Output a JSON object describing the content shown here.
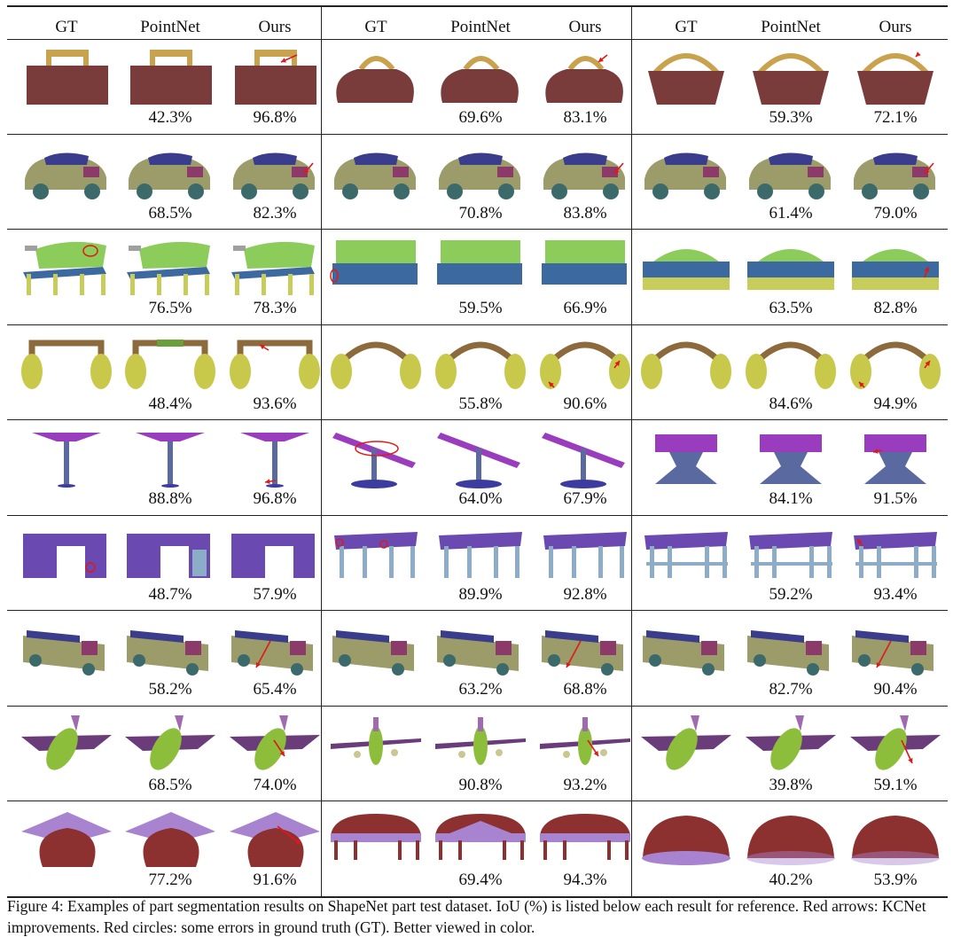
{
  "header": [
    "GT",
    "PointNet",
    "Ours",
    "GT",
    "PointNet",
    "Ours",
    "GT",
    "PointNet",
    "Ours"
  ],
  "rows": [
    {
      "object": "bag",
      "iou": [
        [
          "42.3%",
          "96.8%"
        ],
        [
          "69.6%",
          "83.1%"
        ],
        [
          "59.3%",
          "72.1%"
        ]
      ]
    },
    {
      "object": "car",
      "iou": [
        [
          "68.5%",
          "82.3%"
        ],
        [
          "70.8%",
          "83.8%"
        ],
        [
          "61.4%",
          "79.0%"
        ]
      ]
    },
    {
      "object": "chair",
      "iou": [
        [
          "76.5%",
          "78.3%"
        ],
        [
          "59.5%",
          "66.9%"
        ],
        [
          "63.5%",
          "82.8%"
        ]
      ]
    },
    {
      "object": "earphone",
      "iou": [
        [
          "48.4%",
          "93.6%"
        ],
        [
          "55.8%",
          "90.6%"
        ],
        [
          "84.6%",
          "94.9%"
        ]
      ]
    },
    {
      "object": "lamp",
      "iou": [
        [
          "88.8%",
          "96.8%"
        ],
        [
          "64.0%",
          "67.9%"
        ],
        [
          "84.1%",
          "91.5%"
        ]
      ]
    },
    {
      "object": "table",
      "iou": [
        [
          "48.7%",
          "57.9%"
        ],
        [
          "89.9%",
          "92.8%"
        ],
        [
          "59.2%",
          "93.4%"
        ]
      ]
    },
    {
      "object": "car-2",
      "iou": [
        [
          "58.2%",
          "65.4%"
        ],
        [
          "63.2%",
          "68.8%"
        ],
        [
          "82.7%",
          "90.4%"
        ]
      ]
    },
    {
      "object": "airplane",
      "iou": [
        [
          "68.5%",
          "74.0%"
        ],
        [
          "90.8%",
          "93.2%"
        ],
        [
          "39.8%",
          "59.1%"
        ]
      ]
    },
    {
      "object": "cap",
      "iou": [
        [
          "77.2%",
          "91.6%"
        ],
        [
          "69.4%",
          "94.3%"
        ],
        [
          "40.2%",
          "53.9%"
        ]
      ]
    }
  ],
  "caption": "Figure 4:  Examples of part segmentation results on ShapeNet part test dataset.  IoU (%) is listed below each result for reference. Red arrows: KCNet improvements. Red circles: some errors in ground truth (GT). Better viewed in color.",
  "colors": {
    "bag_body": "#7a3b3b",
    "bag_handle": "#c9a24e",
    "car_body": "#9c9c6a",
    "car_roof": "#3a3c8c",
    "car_wheel": "#3c6a6a",
    "car_hood": "#8c3a6a",
    "chair_back": "#8ccc5a",
    "chair_seat": "#3c6aa0",
    "chair_leg": "#c8cc5a",
    "chair_arm": "#a0a0a0",
    "ear_band": "#8c6a3c",
    "ear_cup": "#c8c84a",
    "ear_band_err": "#6aa03c",
    "lamp_shade": "#9a3cbe",
    "lamp_pole": "#5a6aa0",
    "lamp_base": "#3c3ca0",
    "table_top": "#6a4ab0",
    "table_leg": "#8cacc8",
    "plane_body": "#8cbe3c",
    "plane_wing": "#6a3c7a",
    "plane_tail": "#a06ab0",
    "plane_engine": "#c8c890",
    "cap_crown": "#8c3030",
    "cap_brim": "#a884d0",
    "red_mark": "#e01818"
  }
}
